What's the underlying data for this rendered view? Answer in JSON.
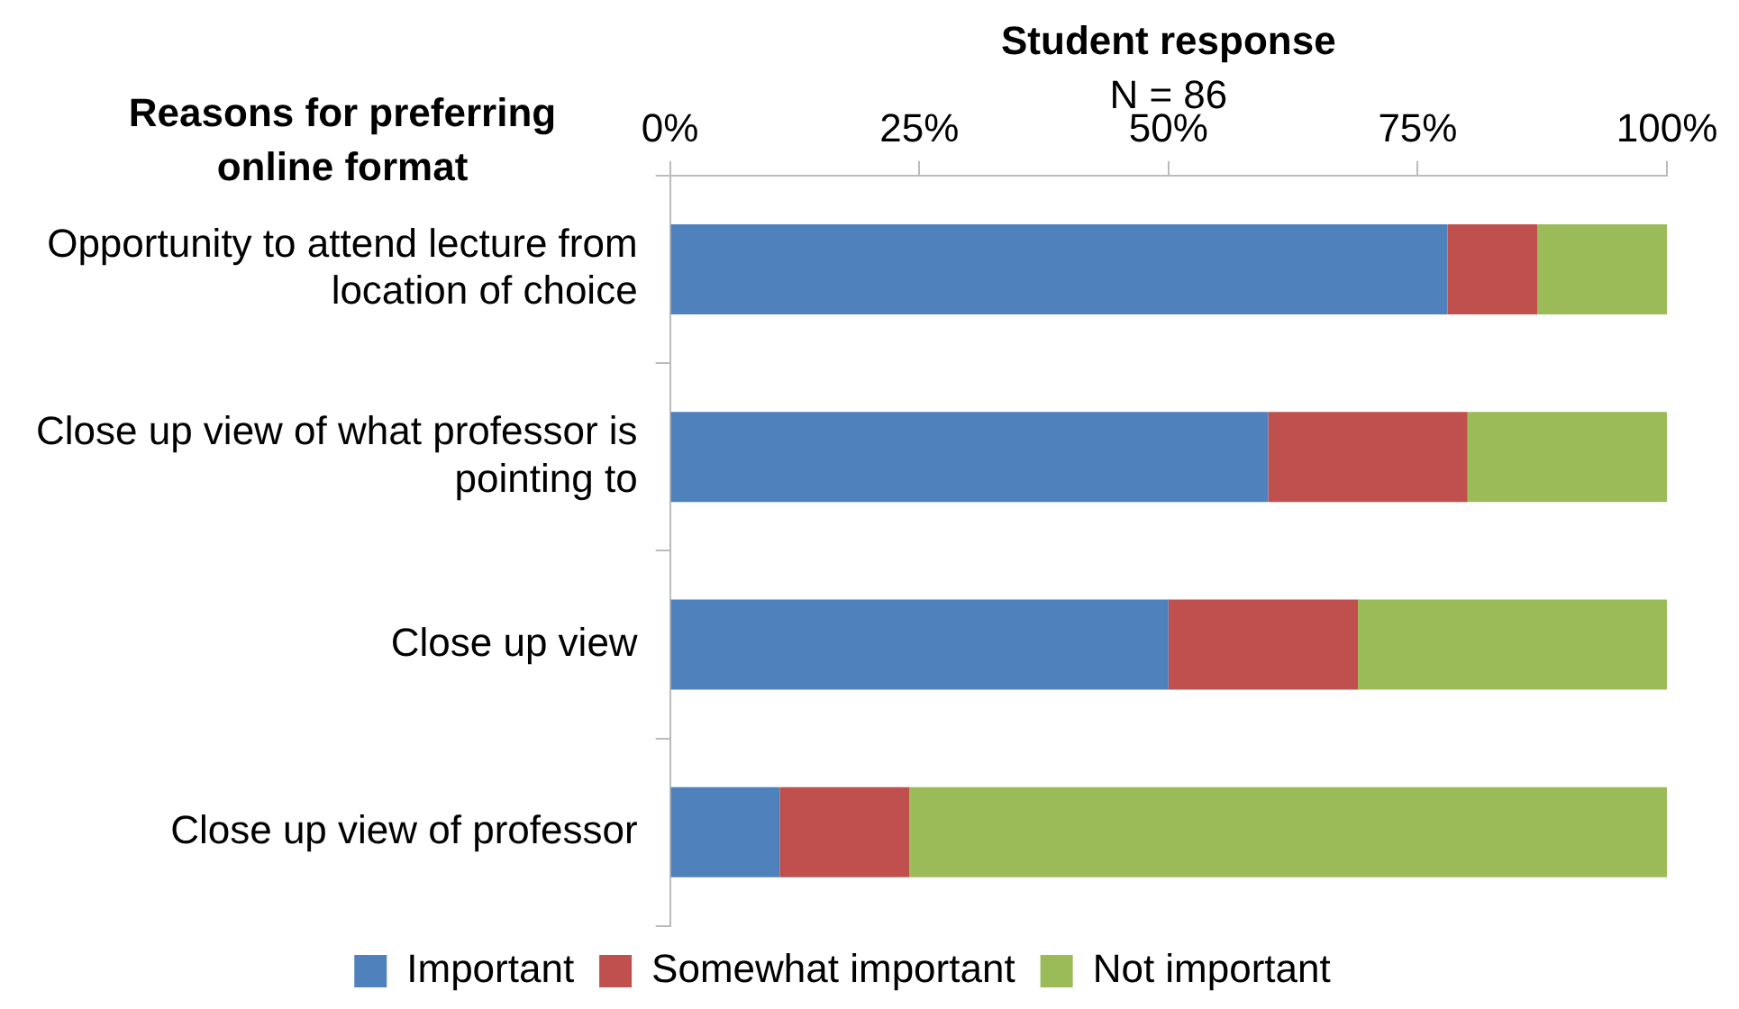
{
  "chart_data": {
    "type": "bar",
    "orientation": "horizontal",
    "stacked": true,
    "title": "Student response",
    "subtitle": "N = 86",
    "ylabel": "Reasons for preferring online format",
    "categories": [
      "Opportunity to attend lecture from location of choice",
      "Close up view of what professor is pointing to",
      "Close up view",
      "Close up view of professor"
    ],
    "series": [
      {
        "name": "Important",
        "color": "#4f81bd",
        "values": [
          78,
          60,
          50,
          11
        ]
      },
      {
        "name": "Somewhat important",
        "color": "#c0504d",
        "values": [
          9,
          20,
          19,
          13
        ]
      },
      {
        "name": "Not important",
        "color": "#9bbb59",
        "values": [
          13,
          20,
          31,
          76
        ]
      }
    ],
    "xlim": [
      0,
      100
    ],
    "xticks": [
      {
        "value": 0,
        "label": "0%"
      },
      {
        "value": 25,
        "label": "25%"
      },
      {
        "value": 50,
        "label": "50%"
      },
      {
        "value": 75,
        "label": "75%"
      },
      {
        "value": 100,
        "label": "100%"
      }
    ],
    "grid": false,
    "legend": "bottom"
  }
}
